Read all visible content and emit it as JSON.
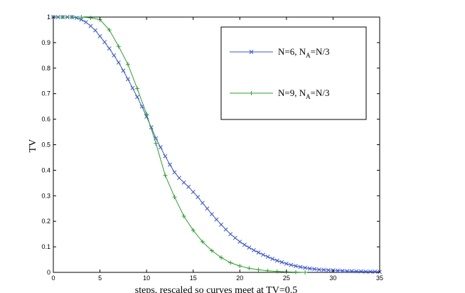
{
  "chart_data": {
    "type": "line",
    "xlabel": "steps, rescaled so curves meet at TV=0.5",
    "ylabel": "TV",
    "xlim": [
      0,
      35
    ],
    "ylim": [
      0,
      1
    ],
    "xticks": [
      "0",
      "5",
      "10",
      "15",
      "20",
      "25",
      "30",
      "35"
    ],
    "yticks": [
      "0",
      "0.1",
      "0.2",
      "0.3",
      "0.4",
      "0.5",
      "0.6",
      "0.7",
      "0.8",
      "0.9",
      "1"
    ],
    "grid": false,
    "legend_position": "top-right",
    "series": [
      {
        "name_main": "N=6, N",
        "name_sub": "A",
        "name_tail": "=N/3",
        "color": "#3a56d4",
        "marker": "x",
        "points": [
          [
            0,
            1
          ],
          [
            0.5,
            1
          ],
          [
            1,
            1
          ],
          [
            1.5,
            1
          ],
          [
            2,
            1
          ],
          [
            2.5,
            0.997
          ],
          [
            3,
            0.99
          ],
          [
            3.5,
            0.98
          ],
          [
            4,
            0.965
          ],
          [
            4.5,
            0.948
          ],
          [
            5,
            0.925
          ],
          [
            5.5,
            0.902
          ],
          [
            6,
            0.877
          ],
          [
            6.5,
            0.85
          ],
          [
            7,
            0.822
          ],
          [
            7.5,
            0.79
          ],
          [
            8,
            0.757
          ],
          [
            8.5,
            0.722
          ],
          [
            9,
            0.687
          ],
          [
            9.5,
            0.65
          ],
          [
            10,
            0.61
          ],
          [
            10.5,
            0.568
          ],
          [
            11,
            0.525
          ],
          [
            11.5,
            0.49
          ],
          [
            12,
            0.455
          ],
          [
            12.5,
            0.422
          ],
          [
            13,
            0.392
          ],
          [
            13.5,
            0.37
          ],
          [
            14,
            0.352
          ],
          [
            14.5,
            0.335
          ],
          [
            15,
            0.315
          ],
          [
            15.5,
            0.295
          ],
          [
            16,
            0.272
          ],
          [
            16.5,
            0.25
          ],
          [
            17,
            0.228
          ],
          [
            17.5,
            0.207
          ],
          [
            18,
            0.187
          ],
          [
            18.5,
            0.168
          ],
          [
            19,
            0.15
          ],
          [
            19.5,
            0.135
          ],
          [
            20,
            0.12
          ],
          [
            20.5,
            0.108
          ],
          [
            21,
            0.097
          ],
          [
            21.5,
            0.087
          ],
          [
            22,
            0.078
          ],
          [
            22.5,
            0.069
          ],
          [
            23,
            0.061
          ],
          [
            23.5,
            0.053
          ],
          [
            24,
            0.046
          ],
          [
            24.5,
            0.04
          ],
          [
            25,
            0.034
          ],
          [
            25.5,
            0.029
          ],
          [
            26,
            0.025
          ],
          [
            26.5,
            0.021
          ],
          [
            27,
            0.018
          ],
          [
            27.5,
            0.015
          ],
          [
            28,
            0.013
          ],
          [
            28.5,
            0.011
          ],
          [
            29,
            0.01
          ],
          [
            29.5,
            0.009
          ],
          [
            30,
            0.008
          ],
          [
            30.5,
            0.007
          ],
          [
            31,
            0.006
          ],
          [
            31.5,
            0.005
          ],
          [
            32,
            0.005
          ],
          [
            32.5,
            0.004
          ],
          [
            33,
            0.004
          ],
          [
            33.5,
            0.003
          ],
          [
            34,
            0.003
          ],
          [
            34.5,
            0.003
          ],
          [
            35,
            0.002
          ]
        ]
      },
      {
        "name_main": "N=9, N",
        "name_sub": "A",
        "name_tail": "=N/3",
        "color": "#2ca02c",
        "marker": "+",
        "points": [
          [
            0,
            1
          ],
          [
            1,
            1
          ],
          [
            2,
            1
          ],
          [
            3,
            1
          ],
          [
            4,
            0.997
          ],
          [
            5,
            0.99
          ],
          [
            6,
            0.95
          ],
          [
            7,
            0.885
          ],
          [
            8,
            0.815
          ],
          [
            9,
            0.72
          ],
          [
            10,
            0.62
          ],
          [
            11,
            0.505
          ],
          [
            12,
            0.38
          ],
          [
            13,
            0.295
          ],
          [
            14,
            0.22
          ],
          [
            15,
            0.165
          ],
          [
            16,
            0.12
          ],
          [
            17,
            0.085
          ],
          [
            18,
            0.058
          ],
          [
            19,
            0.038
          ],
          [
            20,
            0.025
          ],
          [
            21,
            0.016
          ],
          [
            22,
            0.01
          ],
          [
            23,
            0.006
          ],
          [
            24,
            0.004
          ],
          [
            25,
            0.002
          ],
          [
            26,
            0.001
          ],
          [
            27,
            0
          ]
        ]
      }
    ]
  }
}
